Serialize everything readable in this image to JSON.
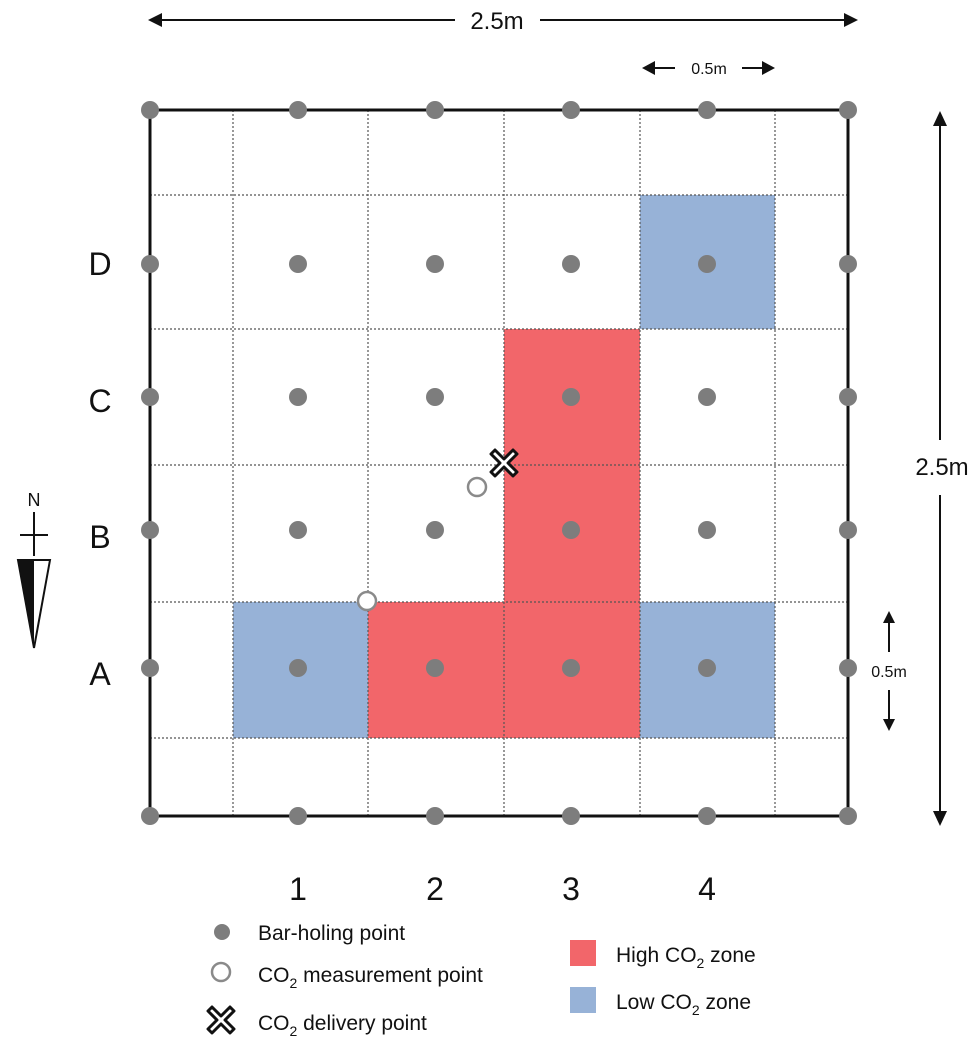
{
  "dimensions": {
    "top_width": "2.5m",
    "cell_width": "0.5m",
    "right_height": "2.5m",
    "cell_height": "0.5m"
  },
  "rows": [
    "A",
    "B",
    "C",
    "D"
  ],
  "columns": [
    "1",
    "2",
    "3",
    "4"
  ],
  "compass": {
    "label": "N"
  },
  "colors": {
    "high_zone": "#f2666a",
    "low_zone": "#97b2d7",
    "bar_point": "#7d7d7d",
    "measurement_point": "#8a8a8a",
    "frame": "#111111"
  },
  "zones": {
    "high": [
      {
        "row": "C",
        "column": "3"
      },
      {
        "row": "B",
        "column": "3"
      },
      {
        "row": "A",
        "column": "2"
      },
      {
        "row": "A",
        "column": "3"
      }
    ],
    "low": [
      {
        "row": "D",
        "column": "4"
      },
      {
        "row": "A",
        "column": "1"
      },
      {
        "row": "A",
        "column": "4"
      }
    ]
  },
  "legend": {
    "bar_holing": "Bar-holing point",
    "measurement": {
      "prefix": "CO",
      "subscript": "2",
      "suffix": " measurement point"
    },
    "delivery": {
      "prefix": "CO",
      "subscript": "2",
      "suffix": " delivery point"
    },
    "high_zone": {
      "prefix": "High CO",
      "subscript": "2",
      "suffix": " zone"
    },
    "low_zone": {
      "prefix": "Low CO",
      "subscript": "2",
      "suffix": " zone"
    }
  }
}
